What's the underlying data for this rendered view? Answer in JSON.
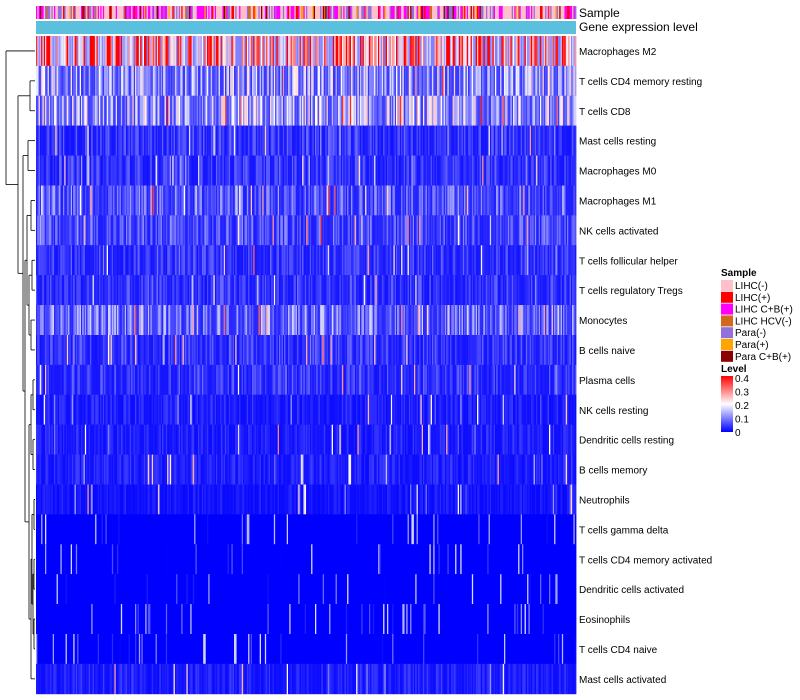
{
  "chart_data": {
    "type": "heatmap",
    "annotations": {
      "sample_label": "Sample",
      "expression_label": "Gene expression level"
    },
    "rows": [
      {
        "label": "Macrophages M2",
        "mean": 0.33
      },
      {
        "label": "T cells CD4 memory resting",
        "mean": 0.14
      },
      {
        "label": "T cells CD8",
        "mean": 0.15
      },
      {
        "label": "Mast cells resting",
        "mean": 0.05
      },
      {
        "label": "Macrophages M0",
        "mean": 0.05
      },
      {
        "label": "Macrophages M1",
        "mean": 0.08
      },
      {
        "label": "NK cells activated",
        "mean": 0.07
      },
      {
        "label": "T cells follicular helper",
        "mean": 0.05
      },
      {
        "label": "T cells regulatory  Tregs",
        "mean": 0.05
      },
      {
        "label": "Monocytes",
        "mean": 0.1
      },
      {
        "label": "B cells naive",
        "mean": 0.05
      },
      {
        "label": "Plasma cells",
        "mean": 0.05
      },
      {
        "label": "NK cells resting",
        "mean": 0.03
      },
      {
        "label": "Dendritic cells resting",
        "mean": 0.03
      },
      {
        "label": "B cells memory",
        "mean": 0.03
      },
      {
        "label": "Neutrophils",
        "mean": 0.02
      },
      {
        "label": "T cells gamma delta",
        "mean": 0.01
      },
      {
        "label": "T cells CD4 memory activated",
        "mean": 0.01
      },
      {
        "label": "Dendritic cells activated",
        "mean": 0.01
      },
      {
        "label": "Eosinophils",
        "mean": 0.01
      },
      {
        "label": "T cells CD4 naive",
        "mean": 0.01
      },
      {
        "label": "Mast cells activated",
        "mean": 0.03
      }
    ],
    "legend_sample": {
      "title": "Sample",
      "items": [
        {
          "label": "LIHC(-)",
          "color": "#FFC0CB"
        },
        {
          "label": "LIHC(+)",
          "color": "#FF0000"
        },
        {
          "label": "LIHC C+B(+)",
          "color": "#FF00FF"
        },
        {
          "label": "LIHC HCV(-)",
          "color": "#D2691E"
        },
        {
          "label": "Para(-)",
          "color": "#9370DB"
        },
        {
          "label": "Para(+)",
          "color": "#FFA500"
        },
        {
          "label": "Para C+B(+)",
          "color": "#8B0000"
        }
      ]
    },
    "legend_level": {
      "title": "Level",
      "ticks": [
        "0.4",
        "0.3",
        "0.2",
        "0.1",
        "0"
      ],
      "range": [
        0,
        0.4
      ],
      "colors": [
        "#0000FF",
        "#FFFFFF",
        "#FF0000"
      ]
    },
    "expression_bar_color": "#5BC0DE",
    "n_samples": 420
  }
}
